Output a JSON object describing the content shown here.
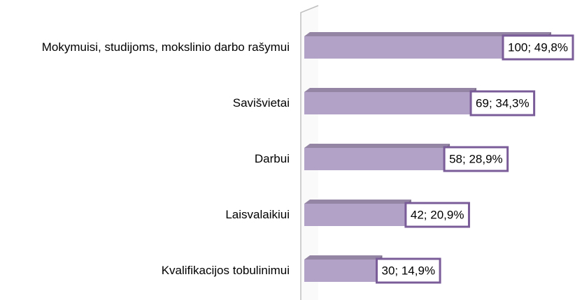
{
  "chart_data": {
    "type": "bar",
    "orientation": "horizontal",
    "categories": [
      "Mokymuisi, studijoms, mokslinio darbo rašymui",
      "Savišvietai",
      "Darbui",
      "Laisvalaikiui",
      "Kvalifikacijos tobulinimui"
    ],
    "values": [
      100,
      69,
      58,
      42,
      30
    ],
    "value_labels": [
      "100; 49,8%",
      "69; 34,3%",
      "58; 28,9%",
      "42; 20,9%",
      "30; 14,9%"
    ],
    "color": "#b3a2c7"
  }
}
